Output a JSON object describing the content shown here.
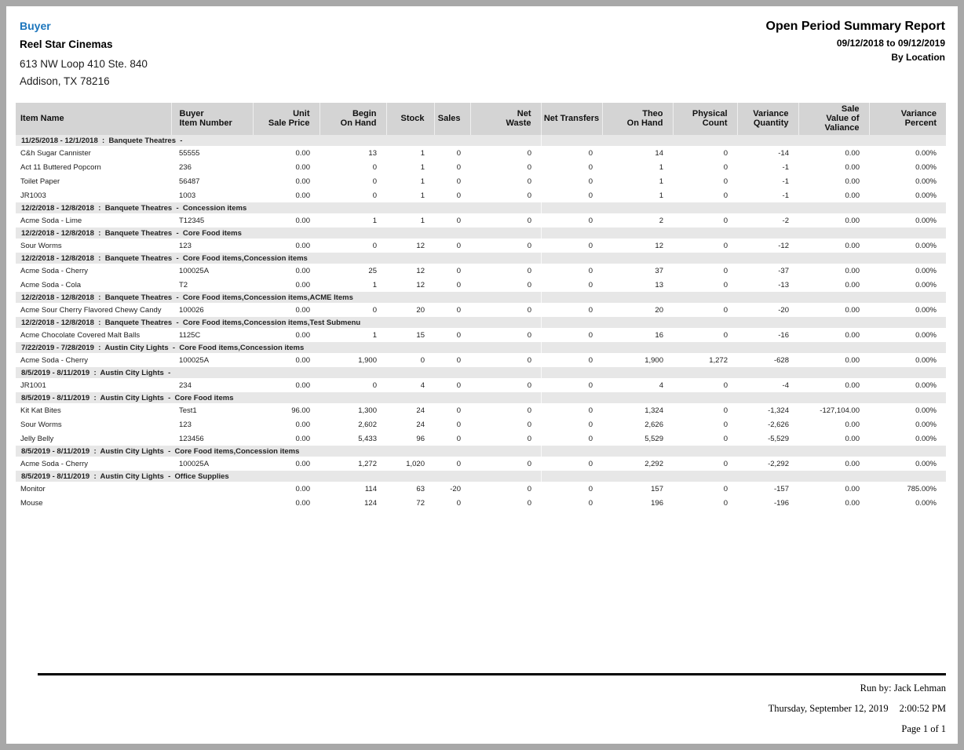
{
  "header": {
    "program_label": "Buyer",
    "company_name": "Reel Star Cinemas",
    "address_line1": "613 NW Loop 410 Ste. 840",
    "address_line2": "Addison, TX 78216",
    "report_title": "Open Period Summary Report",
    "report_date_range": "09/12/2018 to 09/12/2019",
    "report_grouping": "By Location"
  },
  "colors": {
    "accent_blue": "#1b75bc",
    "table_header_bg": "#d4d4d4",
    "section_band_bg": "#e7e7e7",
    "page_frame_gray": "#a8a8a8"
  },
  "table": {
    "columns": [
      {
        "key": "item-name",
        "label": "Item Name",
        "align": "left"
      },
      {
        "key": "buyer-item-number",
        "label": "Buyer\nItem Number",
        "align": "left2"
      },
      {
        "key": "unit-sale-price",
        "label": "Unit\nSale Price",
        "align": "right"
      },
      {
        "key": "begin-on-hand",
        "label": "Begin\nOn Hand",
        "align": "right"
      },
      {
        "key": "stock",
        "label": "Stock",
        "align": "right"
      },
      {
        "key": "sales",
        "label": "Sales",
        "align": "right"
      },
      {
        "key": "net-waste",
        "label": "Net\nWaste",
        "align": "right"
      },
      {
        "key": "net-transfers",
        "label": "Net Transfers",
        "align": "center"
      },
      {
        "key": "theo-on-hand",
        "label": "Theo\nOn Hand",
        "align": "right"
      },
      {
        "key": "physical-count",
        "label": "Physical\nCount",
        "align": "right"
      },
      {
        "key": "variance-quantity",
        "label": "Variance\nQuantity",
        "align": "right"
      },
      {
        "key": "sale-value-of-valiance",
        "label": "Sale\nValue of\nValiance",
        "align": "right"
      },
      {
        "key": "variance-percent",
        "label": "Variance\nPercent",
        "align": "right"
      }
    ],
    "sections": [
      {
        "date_range": "11/25/2018 - 12/1/2018",
        "location": "Banquete Theatres",
        "categories": "",
        "rows": [
          [
            "C&h Sugar Cannister",
            "55555",
            "0.00",
            "13",
            "1",
            "0",
            "0",
            "0",
            "14",
            "0",
            "-14",
            "0.00",
            "0.00%"
          ],
          [
            "Act 11 Buttered Popcorn",
            "236",
            "0.00",
            "0",
            "1",
            "0",
            "0",
            "0",
            "1",
            "0",
            "-1",
            "0.00",
            "0.00%"
          ],
          [
            "Toilet Paper",
            "56487",
            "0.00",
            "0",
            "1",
            "0",
            "0",
            "0",
            "1",
            "0",
            "-1",
            "0.00",
            "0.00%"
          ],
          [
            "JR1003",
            "1003",
            "0.00",
            "0",
            "1",
            "0",
            "0",
            "0",
            "1",
            "0",
            "-1",
            "0.00",
            "0.00%"
          ]
        ]
      },
      {
        "date_range": "12/2/2018 - 12/8/2018",
        "location": "Banquete Theatres",
        "categories": "Concession items",
        "rows": [
          [
            "Acme Soda - Lime",
            "T12345",
            "0.00",
            "1",
            "1",
            "0",
            "0",
            "0",
            "2",
            "0",
            "-2",
            "0.00",
            "0.00%"
          ]
        ]
      },
      {
        "date_range": "12/2/2018 - 12/8/2018",
        "location": "Banquete Theatres",
        "categories": "Core Food items",
        "rows": [
          [
            "Sour Worms",
            "123",
            "0.00",
            "0",
            "12",
            "0",
            "0",
            "0",
            "12",
            "0",
            "-12",
            "0.00",
            "0.00%"
          ]
        ]
      },
      {
        "date_range": "12/2/2018 - 12/8/2018",
        "location": "Banquete Theatres",
        "categories": "Core Food items,Concession items",
        "rows": [
          [
            "Acme Soda - Cherry",
            "100025A",
            "0.00",
            "25",
            "12",
            "0",
            "0",
            "0",
            "37",
            "0",
            "-37",
            "0.00",
            "0.00%"
          ],
          [
            "Acme Soda - Cola",
            "T2",
            "0.00",
            "1",
            "12",
            "0",
            "0",
            "0",
            "13",
            "0",
            "-13",
            "0.00",
            "0.00%"
          ]
        ]
      },
      {
        "date_range": "12/2/2018 - 12/8/2018",
        "location": "Banquete Theatres",
        "categories": "Core Food items,Concession items,ACME Items",
        "rows": [
          [
            "Acme Sour Cherry Flavored Chewy Candy",
            "100026",
            "0.00",
            "0",
            "20",
            "0",
            "0",
            "0",
            "20",
            "0",
            "-20",
            "0.00",
            "0.00%"
          ]
        ]
      },
      {
        "date_range": "12/2/2018 - 12/8/2018",
        "location": "Banquete Theatres",
        "categories": "Core Food items,Concession items,Test Submenu",
        "rows": [
          [
            "Acme Chocolate Covered Malt Balls",
            "1125C",
            "0.00",
            "1",
            "15",
            "0",
            "0",
            "0",
            "16",
            "0",
            "-16",
            "0.00",
            "0.00%"
          ]
        ]
      },
      {
        "date_range": "7/22/2019 - 7/28/2019",
        "location": "Austin City Lights",
        "categories": "Core Food items,Concession items",
        "rows": [
          [
            "Acme Soda - Cherry",
            "100025A",
            "0.00",
            "1,900",
            "0",
            "0",
            "0",
            "0",
            "1,900",
            "1,272",
            "-628",
            "0.00",
            "0.00%"
          ]
        ]
      },
      {
        "date_range": "8/5/2019 - 8/11/2019",
        "location": "Austin City Lights",
        "categories": "",
        "rows": [
          [
            "JR1001",
            "234",
            "0.00",
            "0",
            "4",
            "0",
            "0",
            "0",
            "4",
            "0",
            "-4",
            "0.00",
            "0.00%"
          ]
        ]
      },
      {
        "date_range": "8/5/2019 - 8/11/2019",
        "location": "Austin City Lights",
        "categories": "Core Food items",
        "rows": [
          [
            "Kit Kat Bites",
            "Test1",
            "96.00",
            "1,300",
            "24",
            "0",
            "0",
            "0",
            "1,324",
            "0",
            "-1,324",
            "-127,104.00",
            "0.00%"
          ],
          [
            "Sour Worms",
            "123",
            "0.00",
            "2,602",
            "24",
            "0",
            "0",
            "0",
            "2,626",
            "0",
            "-2,626",
            "0.00",
            "0.00%"
          ],
          [
            "Jelly Belly",
            "123456",
            "0.00",
            "5,433",
            "96",
            "0",
            "0",
            "0",
            "5,529",
            "0",
            "-5,529",
            "0.00",
            "0.00%"
          ]
        ]
      },
      {
        "date_range": "8/5/2019 - 8/11/2019",
        "location": "Austin City Lights",
        "categories": "Core Food items,Concession items",
        "rows": [
          [
            "Acme Soda - Cherry",
            "100025A",
            "0.00",
            "1,272",
            "1,020",
            "0",
            "0",
            "0",
            "2,292",
            "0",
            "-2,292",
            "0.00",
            "0.00%"
          ]
        ]
      },
      {
        "date_range": "8/5/2019 - 8/11/2019",
        "location": "Austin City Lights",
        "categories": "Office Supplies",
        "rows": [
          [
            "Monitor",
            "",
            "0.00",
            "114",
            "63",
            "-20",
            "0",
            "0",
            "157",
            "0",
            "-157",
            "0.00",
            "785.00%"
          ],
          [
            "Mouse",
            "",
            "0.00",
            "124",
            "72",
            "0",
            "0",
            "0",
            "196",
            "0",
            "-196",
            "0.00",
            "0.00%"
          ]
        ]
      }
    ]
  },
  "footer": {
    "run_by": "Run by: Jack Lehman",
    "run_date": "Thursday, September 12,  2019",
    "run_time": "2:00:52 PM",
    "page_number": "Page 1 of 1"
  }
}
